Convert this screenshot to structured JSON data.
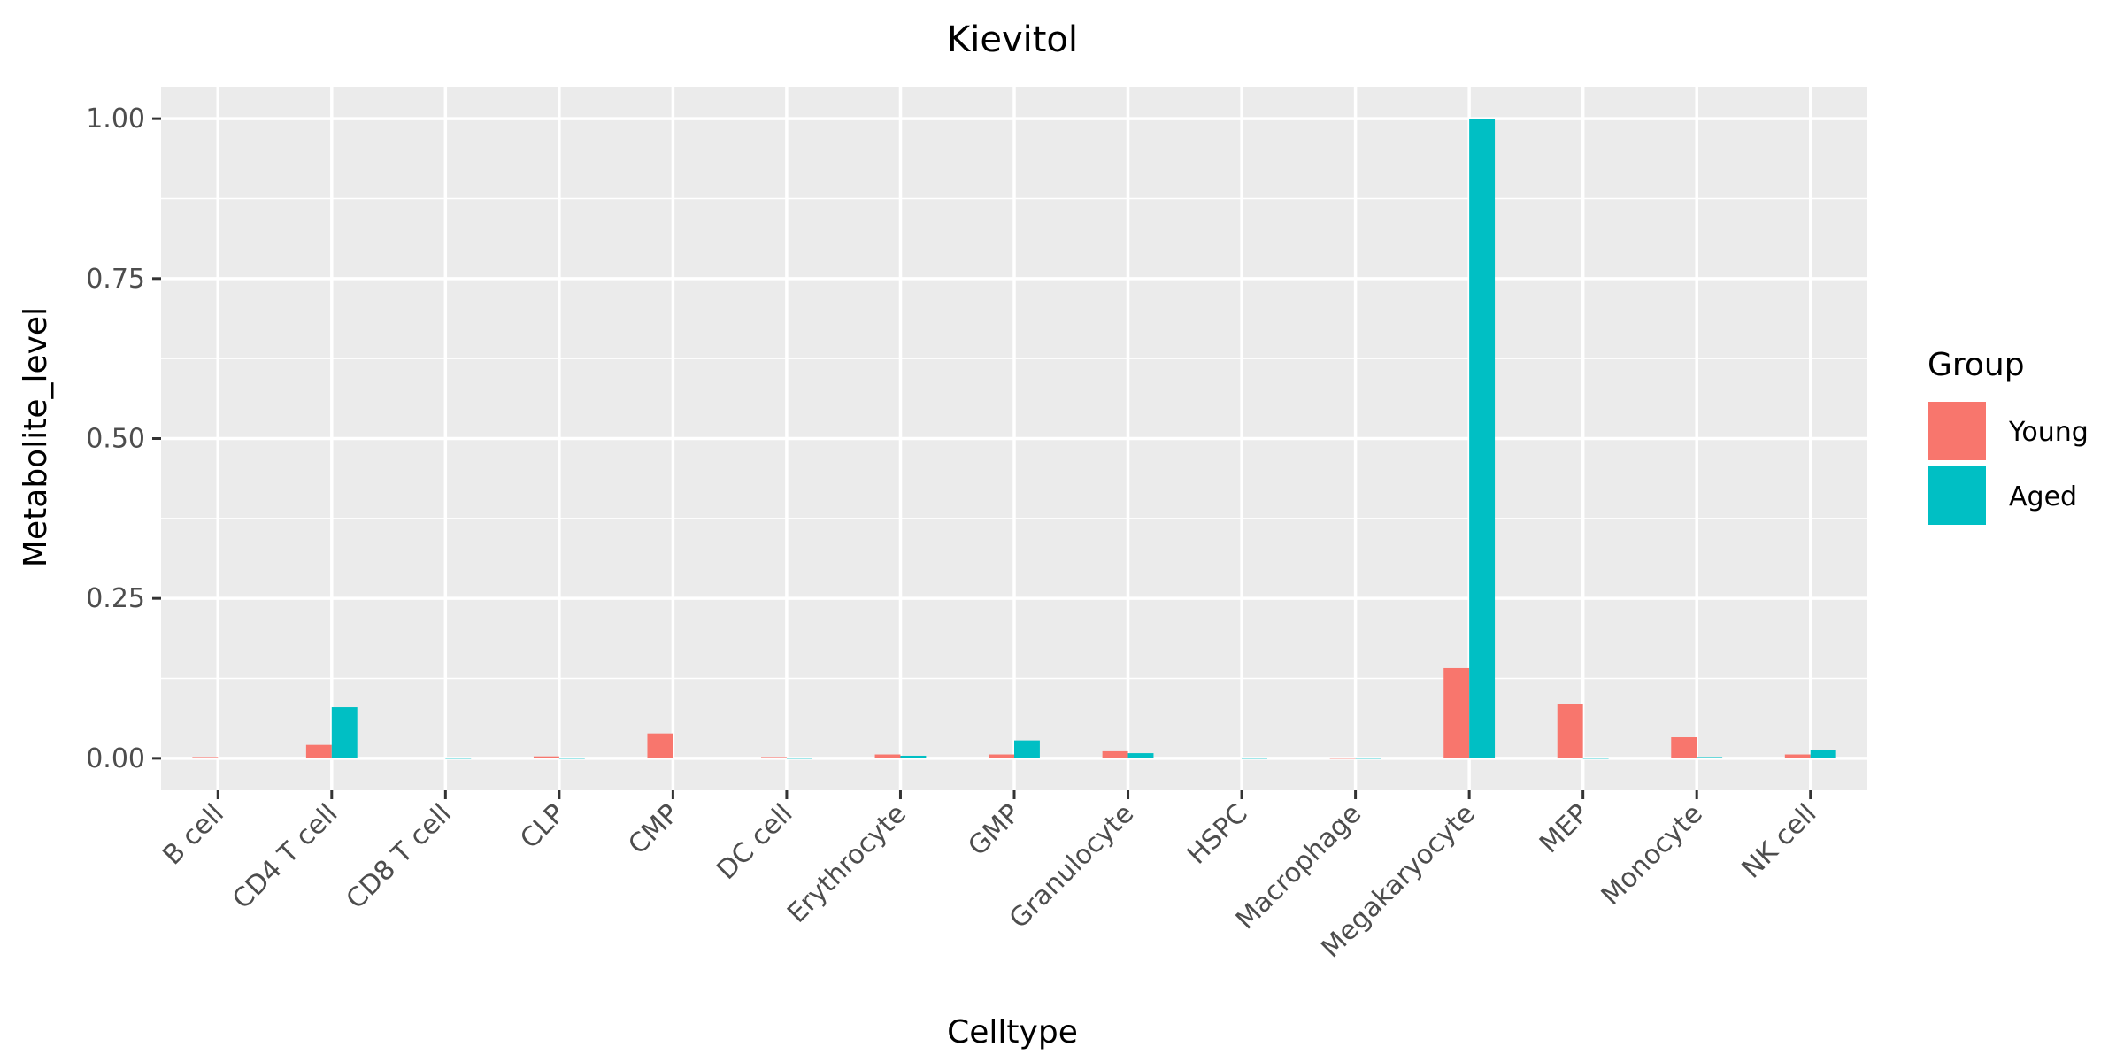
{
  "chart_data": {
    "type": "bar",
    "title": "Kievitol",
    "xlabel": "Celltype",
    "ylabel": "Metabolite_level",
    "categories": [
      "B cell",
      "CD4 T cell",
      "CD8 T cell",
      "CLP",
      "CMP",
      "DC cell",
      "Erythrocyte",
      "GMP",
      "Granulocyte",
      "HSPC",
      "Macrophage",
      "Megakaryocyte",
      "MEP",
      "Monocyte",
      "NK cell"
    ],
    "series": [
      {
        "name": "Young",
        "color": "#F8766D",
        "values": [
          0.002,
          0.021,
          0.001,
          0.003,
          0.039,
          0.002,
          0.006,
          0.006,
          0.011,
          0.001,
          0.0,
          0.141,
          0.085,
          0.033,
          0.006
        ]
      },
      {
        "name": "Aged",
        "color": "#00BFC4",
        "values": [
          0.001,
          0.08,
          0.0,
          0.0,
          0.001,
          0.0,
          0.004,
          0.028,
          0.008,
          0.0,
          0.0,
          1.0,
          0.0,
          0.002,
          0.013
        ]
      }
    ],
    "ylim": [
      -0.05,
      1.05
    ],
    "yticks": [
      0.0,
      0.25,
      0.5,
      0.75,
      1.0
    ],
    "ytick_labels": [
      "0.00",
      "0.25",
      "0.50",
      "0.75",
      "1.00"
    ],
    "grid": true,
    "legend_title": "Group",
    "legend_position": "right",
    "panel_background": "#EBEBEB",
    "grid_color": "#FFFFFF"
  }
}
